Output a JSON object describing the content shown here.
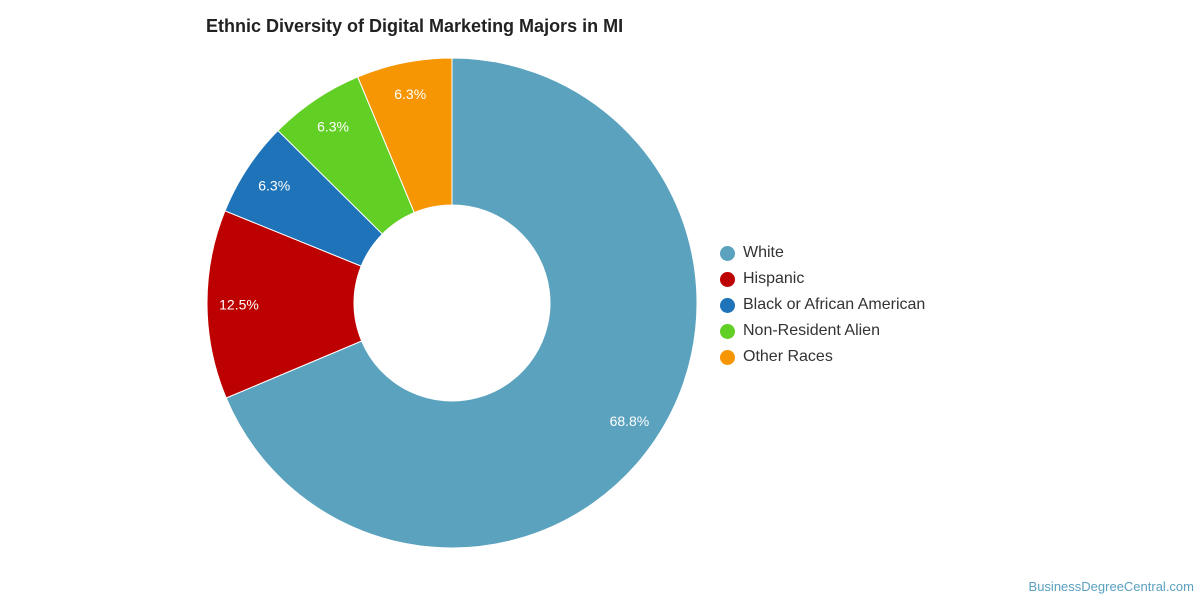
{
  "chart_data": {
    "type": "pie",
    "title": "Ethnic Diversity of Digital Marketing Majors in MI",
    "slices": [
      {
        "label": "White",
        "value": 68.8,
        "display": "68.8%",
        "color": "#5ba2be"
      },
      {
        "label": "Hispanic",
        "value": 12.5,
        "display": "12.5%",
        "color": "#bd0000"
      },
      {
        "label": "Black or African American",
        "value": 6.3,
        "display": "6.3%",
        "color": "#1e73b9"
      },
      {
        "label": "Non-Resident Alien",
        "value": 6.3,
        "display": "6.3%",
        "color": "#62cf25"
      },
      {
        "label": "Other Races",
        "value": 6.3,
        "display": "6.3%",
        "color": "#f79603"
      }
    ],
    "donut": true,
    "legend_position": "right"
  },
  "source_text": "BusinessDegreeCentral.com"
}
